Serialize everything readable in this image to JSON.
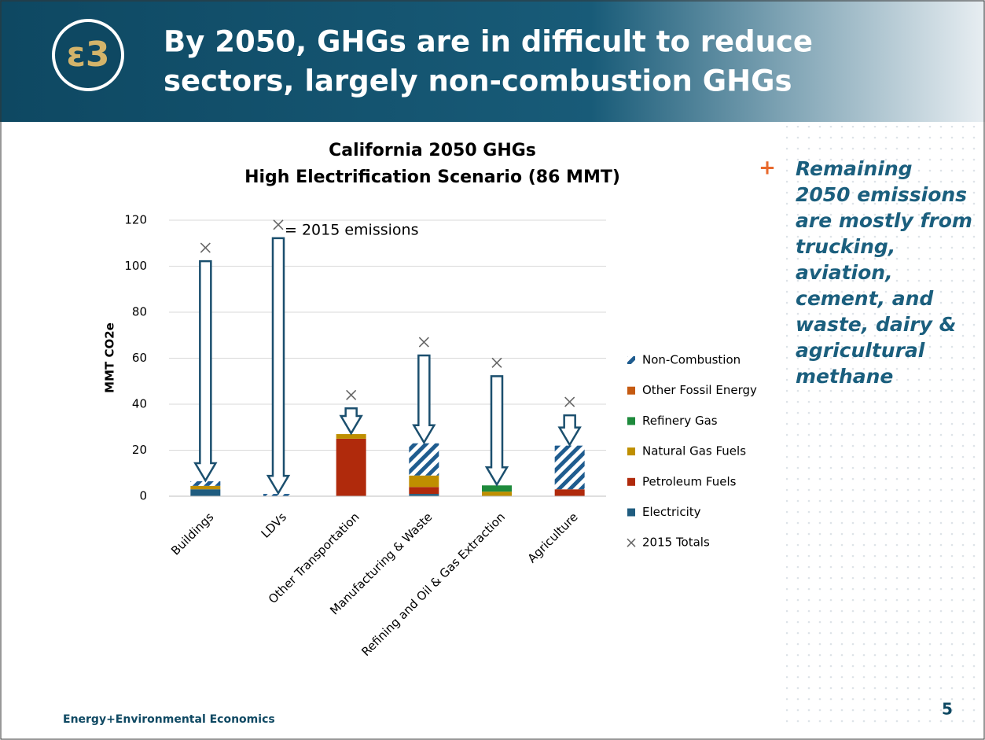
{
  "header": {
    "title_lines": [
      "By 2050, GHGs are in difficult to reduce",
      "sectors, largely non-combustion GHGs"
    ]
  },
  "chart_data": {
    "type": "bar",
    "stacked": true,
    "title": "California 2050 GHGs",
    "subtitle": "High Electrification Scenario (86 MMT)",
    "y_label": "MMT CO2e",
    "categories": [
      "Buildings",
      "LDVs",
      "Other Transportation",
      "Manufacturing & Waste",
      "Refining and Oil & Gas Extraction",
      "Agriculture"
    ],
    "series": [
      {
        "name": "Electricity",
        "color": "#1f5c7f",
        "values": [
          3,
          0,
          0,
          1,
          0,
          0
        ]
      },
      {
        "name": "Petroleum Fuels",
        "color": "#b02a0c",
        "values": [
          0,
          0,
          25,
          3,
          0,
          3
        ]
      },
      {
        "name": "Natural Gas Fuels",
        "color": "#bf8f00",
        "values": [
          1.5,
          0,
          2,
          5,
          2,
          0
        ]
      },
      {
        "name": "Refinery Gas",
        "color": "#1e8a3c",
        "values": [
          0,
          0,
          0,
          0,
          2.7,
          0
        ]
      },
      {
        "name": "Other Fossil Energy",
        "color": "#c55a11",
        "values": [
          0,
          0,
          0,
          0,
          0,
          0
        ]
      },
      {
        "name": "Non-Combustion",
        "color": "#1f5c8f",
        "hatched": true,
        "values": [
          2,
          1,
          0,
          14,
          0,
          19
        ]
      }
    ],
    "totals": {
      "name": "2015 Totals",
      "color": "#666666",
      "values": [
        108,
        118,
        44,
        67,
        58,
        41
      ]
    },
    "annotation": "= 2015 emissions",
    "ylim": [
      0,
      120
    ],
    "yticks": [
      0,
      20,
      40,
      60,
      80,
      100,
      120
    ],
    "grid": true,
    "legend": "right"
  },
  "bullet": "Remaining 2050 emissions are mostly from trucking, aviation, cement, and waste, dairy & agricultural methane",
  "bullet_marker": "+",
  "footer": "Energy+Environmental Economics",
  "page_number": "5"
}
